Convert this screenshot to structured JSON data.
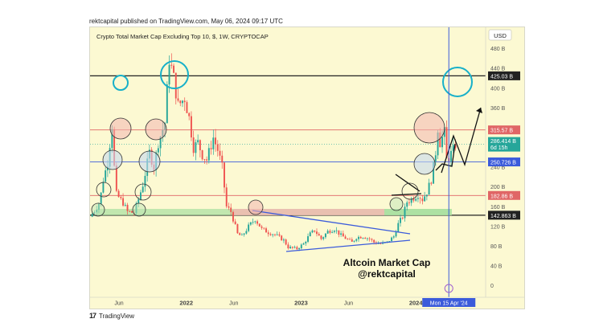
{
  "header": {
    "published": "rektcapital published on TradingView.com, May 06, 2024 09:17 UTC"
  },
  "footer": {
    "brand": "TradingView",
    "logo_icon": "tradingview-logo-icon"
  },
  "colors": {
    "background": "#fcf9d2",
    "candle_up": "#26a69a",
    "candle_down": "#ef5350",
    "blue_line": "#3b5bdb",
    "cyan_circle": "#17b0c9",
    "red_line": "#e06666",
    "black_line": "#222222",
    "green_zone": "#a8e0a0",
    "red_zone": "#f2b6b0"
  },
  "chart_data": {
    "type": "candlestick",
    "title": "Crypto Total Market Cap Excluding Top 10, $, 1W, CRYPTOCAP",
    "currency_badge": "USD",
    "y_unit": "B",
    "ylim": [
      -20,
      520
    ],
    "y_ticks": [
      "480 B",
      "440 B",
      "400 B",
      "360 B",
      "320 B",
      "240 B",
      "200 B",
      "160 B",
      "120 B",
      "80 B",
      "40 B",
      "0"
    ],
    "y_tick_values": [
      480,
      440,
      400,
      360,
      320,
      240,
      200,
      160,
      120,
      80,
      40,
      0
    ],
    "x_ticks": [
      "Jun",
      "2022",
      "Jun",
      "2023",
      "Jun",
      "2024"
    ],
    "x_tick_dates": [
      "2021-06-01",
      "2022-01-01",
      "2022-06-01",
      "2023-01-01",
      "2023-06-01",
      "2024-01-01"
    ],
    "x_range": [
      "2021-03-01",
      "2024-08-10"
    ],
    "price_levels": [
      {
        "label": "425.03 B",
        "value": 425.03,
        "color": "#222222"
      },
      {
        "label": "315.57 B",
        "value": 315.57,
        "color": "#e06666"
      },
      {
        "label": "250.726 B",
        "value": 250.726,
        "color": "#3b5bdb"
      },
      {
        "label": "182.86 B",
        "value": 182.86,
        "color": "#e06666"
      },
      {
        "label": "142.863 B",
        "value": 142.863,
        "color": "#222222"
      }
    ],
    "current_price": {
      "label": "286.414 B",
      "countdown": "6d 15h",
      "value": 286.414
    },
    "cursor_date_label": "Mon 15 Apr '24",
    "cursor_date": "2024-04-15",
    "annotation": "Altcoin Market Cap\n@rektcapital",
    "price_series": [
      [
        "2021-03-01",
        140
      ],
      [
        "2021-03-15",
        152
      ],
      [
        "2021-04-01",
        170
      ],
      [
        "2021-04-12",
        215
      ],
      [
        "2021-04-26",
        250
      ],
      [
        "2021-05-10",
        325
      ],
      [
        "2021-05-17",
        240
      ],
      [
        "2021-05-24",
        185
      ],
      [
        "2021-06-14",
        168
      ],
      [
        "2021-06-28",
        150
      ],
      [
        "2021-07-19",
        148
      ],
      [
        "2021-08-02",
        175
      ],
      [
        "2021-08-16",
        205
      ],
      [
        "2021-09-06",
        270
      ],
      [
        "2021-09-20",
        240
      ],
      [
        "2021-10-04",
        290
      ],
      [
        "2021-10-25",
        330
      ],
      [
        "2021-11-08",
        460
      ],
      [
        "2021-11-22",
        420
      ],
      [
        "2021-12-06",
        365
      ],
      [
        "2021-12-27",
        380
      ],
      [
        "2022-01-10",
        340
      ],
      [
        "2022-01-24",
        280
      ],
      [
        "2022-02-07",
        290
      ],
      [
        "2022-02-21",
        265
      ],
      [
        "2022-03-07",
        255
      ],
      [
        "2022-03-28",
        300
      ],
      [
        "2022-04-11",
        275
      ],
      [
        "2022-04-25",
        240
      ],
      [
        "2022-05-09",
        160
      ],
      [
        "2022-05-23",
        150
      ],
      [
        "2022-06-13",
        105
      ],
      [
        "2022-06-27",
        100
      ],
      [
        "2022-07-18",
        120
      ],
      [
        "2022-08-08",
        135
      ],
      [
        "2022-08-29",
        115
      ],
      [
        "2022-09-19",
        108
      ],
      [
        "2022-10-10",
        104
      ],
      [
        "2022-11-07",
        92
      ],
      [
        "2022-11-21",
        78
      ],
      [
        "2022-12-19",
        75
      ],
      [
        "2023-01-09",
        85
      ],
      [
        "2023-01-30",
        105
      ],
      [
        "2023-02-13",
        112
      ],
      [
        "2023-03-06",
        95
      ],
      [
        "2023-03-27",
        110
      ],
      [
        "2023-04-17",
        115
      ],
      [
        "2023-05-08",
        102
      ],
      [
        "2023-06-12",
        88
      ],
      [
        "2023-06-26",
        98
      ],
      [
        "2023-07-17",
        100
      ],
      [
        "2023-08-07",
        95
      ],
      [
        "2023-08-21",
        88
      ],
      [
        "2023-09-11",
        85
      ],
      [
        "2023-10-02",
        88
      ],
      [
        "2023-10-23",
        100
      ],
      [
        "2023-11-06",
        125
      ],
      [
        "2023-11-20",
        140
      ],
      [
        "2023-12-04",
        170
      ],
      [
        "2023-12-18",
        175
      ],
      [
        "2024-01-08",
        185
      ],
      [
        "2024-01-22",
        175
      ],
      [
        "2024-02-05",
        190
      ],
      [
        "2024-02-19",
        215
      ],
      [
        "2024-03-04",
        270
      ],
      [
        "2024-03-11",
        320
      ],
      [
        "2024-03-18",
        290
      ],
      [
        "2024-04-01",
        310
      ],
      [
        "2024-04-08",
        255
      ],
      [
        "2024-04-15",
        260
      ],
      [
        "2024-04-29",
        275
      ],
      [
        "2024-05-06",
        286
      ]
    ]
  }
}
